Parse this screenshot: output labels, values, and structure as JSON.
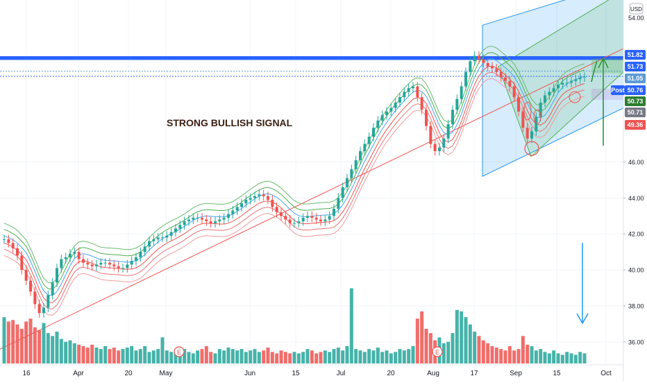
{
  "chart_data": {
    "type": "candlestick",
    "currency_label": "USD",
    "annotation": "STRONG BULLISH SIGNAL",
    "x_labels": [
      "16",
      "Apr",
      "20",
      "May",
      "Jun",
      "15",
      "Jul",
      "20",
      "Aug",
      "17",
      "Sep",
      "15",
      "Oct"
    ],
    "y_ticks": [
      36.0,
      38.0,
      40.0,
      42.0,
      44.0,
      46.0
    ],
    "y_top_partial": "54.00",
    "ylim": [
      34.8,
      55.0
    ],
    "price_badges": [
      {
        "label": "51.82",
        "color": "#2962ff",
        "text_color": "#ffffff"
      },
      {
        "label": "51.73",
        "color": "#2962ff",
        "text_color": "#ffffff"
      },
      {
        "label": "51.05",
        "color": "#5b9bd5",
        "text_color": "#ffffff"
      },
      {
        "label": "Post",
        "color": "#2962ff",
        "text_color": "#ffffff"
      },
      {
        "label": "50.76",
        "color": "#2962ff",
        "text_color": "#ffffff"
      },
      {
        "label": "50.73",
        "color": "#2e7d32",
        "text_color": "#ffffff"
      },
      {
        "label": "50.71",
        "color": "#787b86",
        "text_color": "#ffffff"
      },
      {
        "label": "49.36",
        "color": "#ef5350",
        "text_color": "#ffffff"
      }
    ],
    "horizontal_levels": [
      51.82,
      51.73,
      51.05,
      50.76
    ],
    "earnings_markers": [
      "E",
      "E",
      "E"
    ],
    "close_series": [
      41.7,
      41.5,
      41.2,
      40.8,
      40.0,
      39.4,
      38.8,
      38.1,
      37.6,
      37.9,
      38.6,
      39.3,
      40.1,
      40.6,
      40.7,
      40.9,
      41.0,
      40.6,
      40.4,
      40.3,
      40.2,
      40.3,
      40.4,
      40.4,
      40.3,
      40.2,
      40.1,
      40.1,
      40.3,
      40.5,
      40.7,
      41.0,
      41.3,
      41.6,
      41.7,
      41.8,
      41.8,
      41.9,
      42.1,
      42.3,
      42.5,
      42.7,
      42.8,
      42.9,
      42.9,
      42.8,
      42.7,
      42.6,
      42.7,
      42.8,
      42.9,
      43.1,
      43.3,
      43.5,
      43.7,
      43.9,
      44.0,
      44.1,
      44.2,
      44.1,
      43.9,
      43.5,
      43.2,
      43.0,
      42.8,
      42.6,
      42.6,
      42.7,
      42.9,
      43.0,
      42.9,
      42.8,
      42.7,
      42.8,
      43.0,
      43.4,
      44.0,
      44.6,
      45.1,
      45.6,
      46.1,
      46.6,
      47.0,
      47.4,
      47.9,
      48.3,
      48.6,
      48.8,
      49.0,
      49.3,
      49.6,
      49.9,
      50.1,
      50.2,
      49.6,
      48.9,
      48.0,
      47.0,
      46.6,
      46.8,
      47.3,
      48.1,
      48.9,
      49.5,
      50.2,
      51.0,
      51.6,
      51.9,
      51.7,
      51.5,
      51.3,
      51.2,
      51.0,
      50.7,
      50.5,
      50.2,
      49.6,
      48.8,
      47.9,
      47.3,
      47.7,
      48.5,
      49.3,
      49.7,
      49.9,
      50.1,
      50.3,
      50.4,
      50.4,
      50.5,
      50.6,
      50.7,
      50.73
    ],
    "volume_series": [
      3.2,
      2.9,
      3.0,
      2.7,
      2.4,
      2.9,
      3.1,
      2.5,
      2.3,
      2.8,
      2.1,
      1.9,
      2.2,
      1.7,
      1.5,
      1.6,
      1.4,
      1.3,
      1.2,
      1.1,
      1.3,
      1.1,
      1.0,
      1.2,
      1.0,
      1.1,
      0.9,
      1.0,
      1.1,
      1.2,
      0.9,
      1.0,
      1.2,
      0.8,
      0.9,
      1.0,
      1.8,
      0.9,
      0.8,
      0.7,
      0.9,
      1.0,
      0.8,
      0.7,
      0.9,
      1.0,
      1.2,
      0.8,
      0.7,
      1.0,
      0.9,
      1.1,
      1.0,
      0.9,
      1.0,
      0.8,
      0.9,
      1.0,
      0.8,
      0.9,
      1.1,
      0.8,
      0.7,
      0.9,
      0.8,
      0.7,
      0.8,
      0.7,
      0.8,
      1.0,
      0.9,
      0.7,
      0.8,
      0.9,
      0.8,
      1.0,
      1.1,
      0.9,
      1.2,
      5.2,
      1.0,
      0.9,
      0.8,
      1.0,
      0.9,
      1.1,
      0.8,
      0.9,
      0.7,
      0.8,
      1.0,
      0.9,
      1.0,
      1.2,
      3.1,
      3.6,
      2.4,
      2.1,
      1.6,
      1.8,
      1.4,
      1.5,
      2.1,
      3.7,
      3.6,
      3.2,
      2.7,
      2.2,
      1.9,
      1.6,
      1.4,
      1.2,
      1.1,
      1.0,
      0.9,
      1.2,
      0.9,
      1.0,
      1.9,
      1.3,
      1.2,
      0.9,
      1.0,
      0.8,
      0.7,
      0.9,
      0.7,
      0.6,
      0.8,
      0.7,
      0.6,
      0.8,
      0.7
    ]
  }
}
